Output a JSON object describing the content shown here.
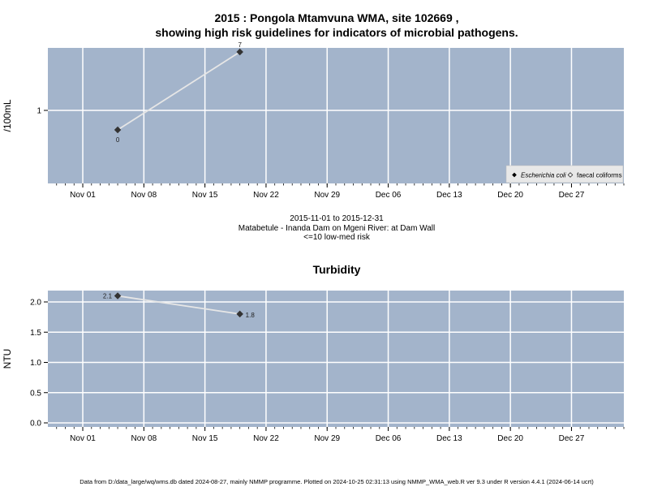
{
  "header": {
    "title_line1": "2015 : Pongola Mtamvuna WMA, site 102669 ,",
    "title_line2": "showing high risk guidelines for indicators of microbial pathogens."
  },
  "caption": {
    "date_range": "2015-11-01 to 2015-12-31",
    "site_name": "Matabetule - Inanda Dam on Mgeni River: at Dam Wall",
    "risk": "<=10 low-med risk"
  },
  "footer": {
    "text": "Data from D:/data_large/wq/wms.db dated 2024-08-27, mainly NMMP programme. Plotted on 2024-10-25 02:31:13 using NMMP_WMA_web.R ver 9.3 under R version 4.4.1 (2024-06-14 ucrt)"
  },
  "colors": {
    "panel_bg": "#a3b4cb",
    "grid": "#ffffff",
    "line": "#e6e6e6",
    "point": "#333333"
  },
  "chart_data": [
    {
      "type": "line",
      "title": "",
      "xlabel": "",
      "ylabel": "/100mL",
      "yscale": "log",
      "xlim": [
        "2015-10-28",
        "2016-01-02"
      ],
      "xticks": [
        "Nov 01",
        "Nov 08",
        "Nov 15",
        "Nov 22",
        "Nov 29",
        "Dec 06",
        "Dec 13",
        "Dec 20",
        "Dec 27"
      ],
      "yticks": [
        "1"
      ],
      "grid": true,
      "legend_position": "bottom-right",
      "series": [
        {
          "name": "Escherichia coli",
          "x": [
            "2015-11-05",
            "2015-11-19"
          ],
          "y": [
            0,
            7
          ],
          "labels": [
            "0",
            "7"
          ]
        },
        {
          "name": "faecal coliforms",
          "x": [],
          "y": [],
          "labels": []
        }
      ]
    },
    {
      "type": "line",
      "title": "Turbidity",
      "xlabel": "",
      "ylabel": "NTU",
      "ylim": [
        -0.08,
        2.18
      ],
      "xlim": [
        "2015-10-28",
        "2016-01-02"
      ],
      "xticks": [
        "Nov 01",
        "Nov 08",
        "Nov 15",
        "Nov 22",
        "Nov 29",
        "Dec 06",
        "Dec 13",
        "Dec 20",
        "Dec 27"
      ],
      "yticks": [
        "0.0",
        "0.5",
        "1.0",
        "1.5",
        "2.0"
      ],
      "grid": true,
      "series": [
        {
          "x": [
            "2015-11-05",
            "2015-11-19"
          ],
          "y": [
            2.1,
            1.8
          ],
          "labels": [
            "2.1",
            "1.8"
          ]
        }
      ]
    }
  ]
}
